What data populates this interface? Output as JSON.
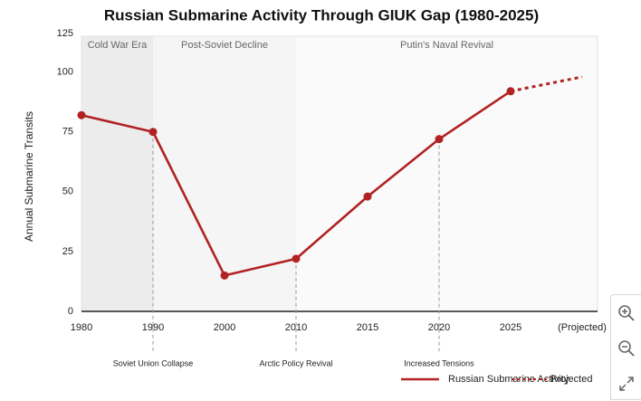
{
  "chart_data": {
    "type": "line",
    "title": "Russian Submarine Activity Through GIUK Gap (1980-2025)",
    "ylabel": "Annual Submarine Transits",
    "categories": [
      "1980",
      "1990",
      "2000",
      "2010",
      "2015",
      "2020",
      "2025",
      "(Projected)"
    ],
    "series": [
      {
        "name": "Russian Submarine Activity",
        "color": "#b22222",
        "values": [
          82,
          75,
          15,
          22,
          48,
          72,
          92,
          null
        ]
      },
      {
        "name": "Projected",
        "color": "#b22222",
        "dashed": true,
        "values": [
          null,
          null,
          null,
          null,
          null,
          null,
          92,
          98
        ]
      }
    ],
    "ylim": [
      0,
      115
    ],
    "yticks": [
      0,
      25,
      50,
      75,
      100,
      125
    ],
    "grid": false,
    "legend": "bottom-right",
    "eras": [
      {
        "label": "Cold War Era",
        "start": "1980",
        "end": "1990",
        "color": "#ececec"
      },
      {
        "label": "Post-Soviet Decline",
        "start": "1990",
        "end": "2010",
        "color": "#f5f5f5"
      },
      {
        "label": "Putin's Naval Revival",
        "start": "2010",
        "end": "(Projected)",
        "color": "#fafafa"
      }
    ],
    "annotations": [
      {
        "category": "1990",
        "label": "Soviet Union Collapse"
      },
      {
        "category": "2010",
        "label": "Arctic Policy Revival"
      },
      {
        "category": "2020",
        "label": "Increased Tensions"
      }
    ]
  }
}
